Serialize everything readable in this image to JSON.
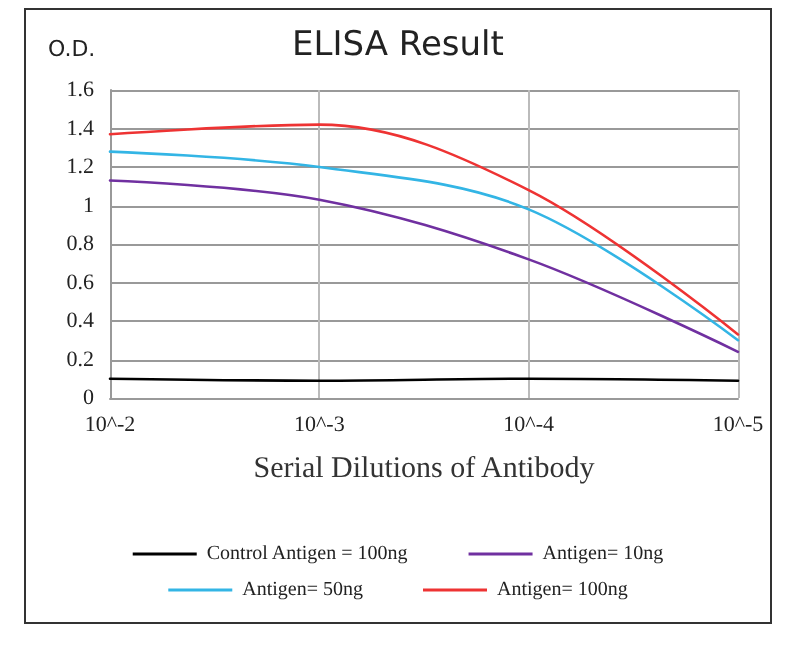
{
  "chart_data": {
    "type": "line",
    "title": "ELISA Result",
    "ylabel": "O.D.",
    "xlabel": "Serial Dilutions of Antibody",
    "categories": [
      "10^-2",
      "10^-3",
      "10^-4",
      "10^-5"
    ],
    "series": [
      {
        "name": "Control Antigen = 100ng",
        "color": "#000000",
        "values": [
          0.1,
          0.09,
          0.1,
          0.09
        ]
      },
      {
        "name": "Antigen= 10ng",
        "color": "#7030a0",
        "values": [
          1.13,
          1.03,
          0.72,
          0.24
        ]
      },
      {
        "name": "Antigen= 50ng",
        "color": "#33b5e5",
        "values": [
          1.28,
          1.2,
          0.98,
          0.3
        ]
      },
      {
        "name": "Antigen= 100ng",
        "color": "#ee3333",
        "values": [
          1.37,
          1.42,
          1.08,
          0.33
        ]
      }
    ],
    "ylim": [
      0,
      1.6
    ],
    "yticks": [
      0,
      0.2,
      0.4,
      0.6,
      0.8,
      1,
      1.2,
      1.4,
      1.6
    ],
    "grid": true,
    "legend": "bottom",
    "marker": "none",
    "line_style": "solid"
  }
}
